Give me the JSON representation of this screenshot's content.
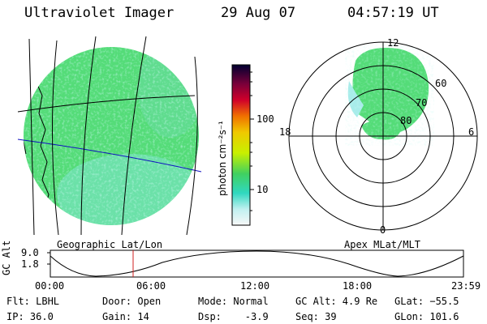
{
  "header": {
    "instrument": "Ultraviolet Imager",
    "date": "29 Aug 07",
    "time": "04:57:19 UT"
  },
  "colorbar": {
    "unit_label": "photon cm⁻²s⁻¹",
    "ticks": [
      "100",
      "10"
    ],
    "colors": [
      "#000030",
      "#7a003a",
      "#d0002a",
      "#f07000",
      "#f0c800",
      "#c8f000",
      "#40d060",
      "#30d8c0",
      "#c0f0f0",
      "#f8f8f8"
    ]
  },
  "polar_plot": {
    "clock_labels": [
      "12",
      "18",
      "6",
      "0"
    ],
    "lat_labels": [
      "60",
      "70",
      "80"
    ]
  },
  "panel_labels": {
    "left": "Geographic Lat/Lon",
    "right": "Apex MLat/MLT"
  },
  "altitude_plot": {
    "ylabel": "GC Alt",
    "y_ticks": [
      "9.0",
      "1.8"
    ],
    "x_ticks": [
      "00:00",
      "06:00",
      "12:00",
      "18:00",
      "23:59"
    ]
  },
  "footer": {
    "filter": "Flt: LBHL",
    "ip": "IP: 36.0",
    "door": "Door: Open",
    "gain": "Gain: 14",
    "mode": "Mode: Normal",
    "dsp": "Dsp:    -3.9",
    "gc_alt": "GC Alt: 4.9 Re",
    "seq": "Seq: 39",
    "glat": "GLat: −55.5",
    "glon": "GLon: 101.6"
  }
}
